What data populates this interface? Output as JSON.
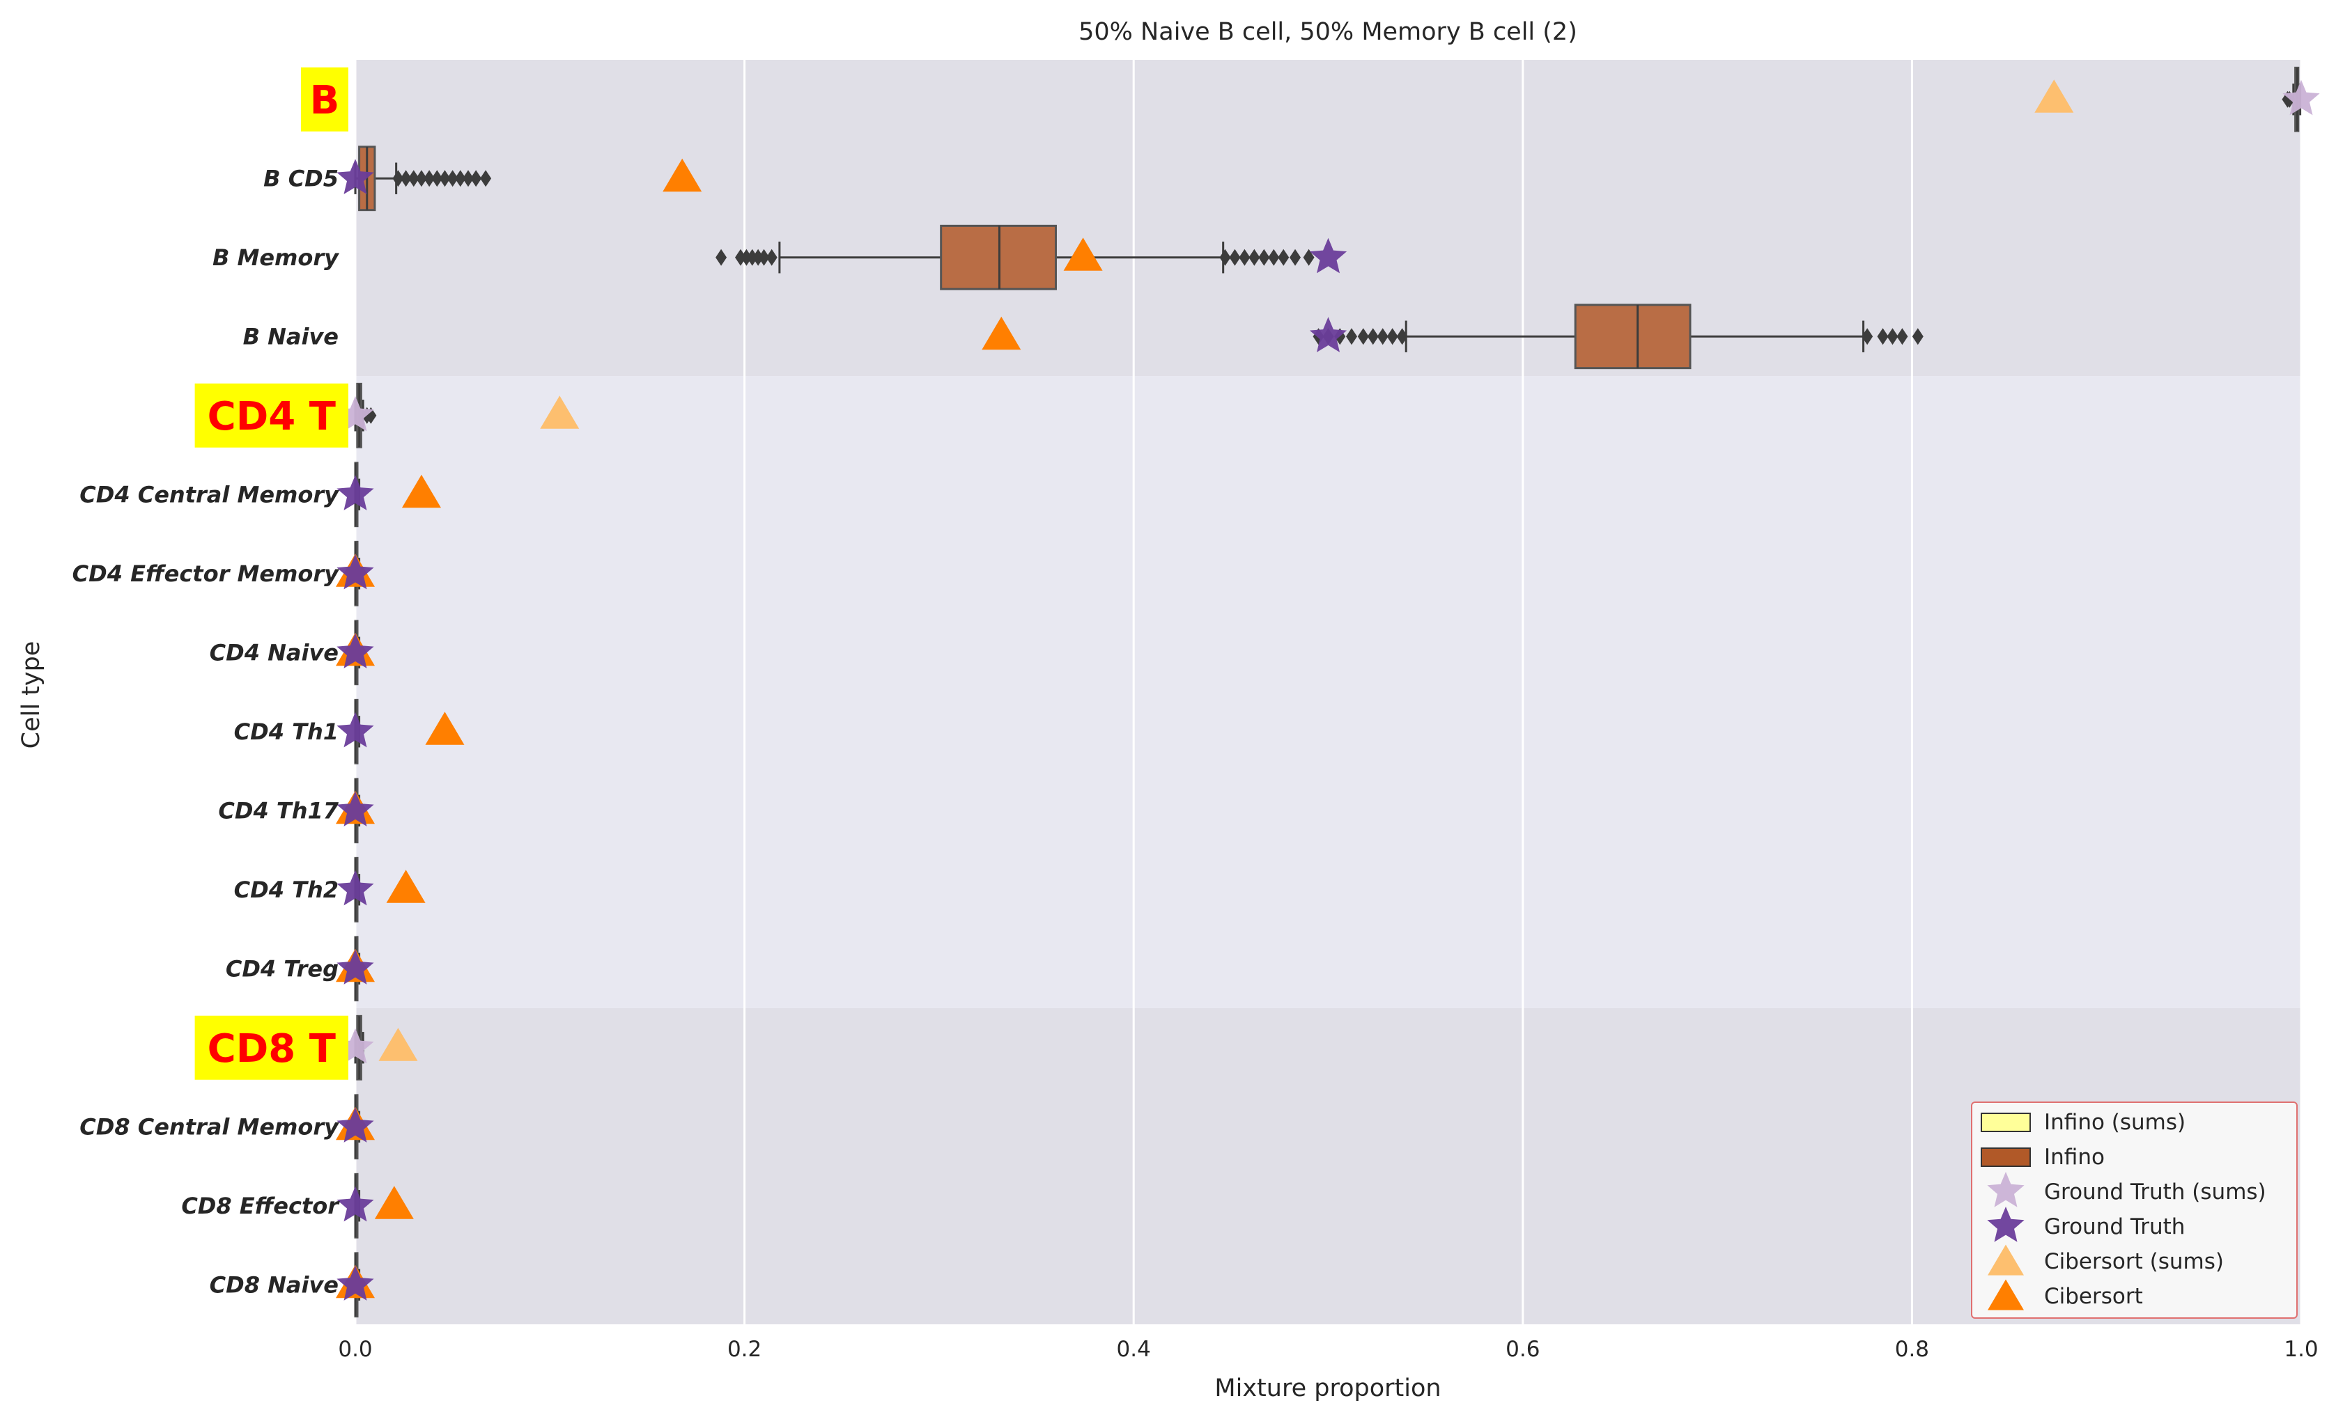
{
  "chart_data": {
    "type": "box",
    "title": "50% Naive B cell, 50% Memory B cell (2)",
    "xlabel": "Mixture proportion",
    "ylabel": "Cell type",
    "xlim": [
      0.0,
      1.0
    ],
    "xticks": [
      "0.0",
      "0.2",
      "0.4",
      "0.6",
      "0.8",
      "1.0"
    ],
    "grid": true,
    "legend_position": "bottom-right",
    "groups": [
      {
        "label": "B",
        "rows": [
          "B",
          "B CD5",
          "B Memory",
          "B Naive"
        ]
      },
      {
        "label": "CD4 T",
        "rows": [
          "CD4 T",
          "CD4 Central Memory",
          "CD4 Effector Memory",
          "CD4 Naive",
          "CD4 Th1",
          "CD4 Th17",
          "CD4 Th2",
          "CD4 Treg"
        ]
      },
      {
        "label": "CD8 T",
        "rows": [
          "CD8 T",
          "CD8 Central Memory",
          "CD8 Effector",
          "CD8 Naive"
        ]
      }
    ],
    "categories": [
      "B",
      "B CD5",
      "B Memory",
      "B Naive",
      "CD4 T",
      "CD4 Central Memory",
      "CD4 Effector Memory",
      "CD4 Naive",
      "CD4 Th1",
      "CD4 Th17",
      "CD4 Th2",
      "CD4 Treg",
      "CD8 T",
      "CD8 Central Memory",
      "CD8 Effector",
      "CD8 Naive"
    ],
    "group_header_rows": [
      "B",
      "CD4 T",
      "CD8 T"
    ],
    "colors": {
      "infino_sums": "#ffff99",
      "infino": "#b15928",
      "ground_truth_sums": "#cab2d6",
      "ground_truth": "#6a3d9a",
      "cibersort_sums": "#fdbf6f",
      "cibersort": "#ff7f00",
      "label_box": "#ffff00",
      "label_text": "#ff0000",
      "band_dark": "#e0dfe7",
      "band_light": "#e8e8f1"
    },
    "series": [
      {
        "name": "Infino",
        "kind": "box",
        "boxes": [
          {
            "row": "B",
            "whislo": 0.996,
            "q1": 0.997,
            "med": 0.998,
            "q3": 0.9985,
            "whishi": 0.9995,
            "fliers": [
              0.993,
              0.994
            ]
          },
          {
            "row": "B CD5",
            "whislo": 0.0,
            "q1": 0.002,
            "med": 0.006,
            "q3": 0.01,
            "whishi": 0.021,
            "fliers": [
              0.022,
              0.026,
              0.03,
              0.034,
              0.038,
              0.042,
              0.046,
              0.05,
              0.054,
              0.058,
              0.062,
              0.067
            ]
          },
          {
            "row": "B Memory",
            "whislo": 0.218,
            "q1": 0.301,
            "med": 0.331,
            "q3": 0.36,
            "whishi": 0.446,
            "fliers": [
              0.188,
              0.198,
              0.201,
              0.204,
              0.207,
              0.21,
              0.214,
              0.447,
              0.452,
              0.457,
              0.462,
              0.467,
              0.472,
              0.477,
              0.483,
              0.49
            ]
          },
          {
            "row": "B Naive",
            "whislo": 0.54,
            "q1": 0.627,
            "med": 0.659,
            "q3": 0.686,
            "whishi": 0.775,
            "fliers": [
              0.495,
              0.5,
              0.506,
              0.512,
              0.518,
              0.523,
              0.528,
              0.533,
              0.538,
              0.777,
              0.785,
              0.79,
              0.795,
              0.803
            ]
          },
          {
            "row": "CD4 T",
            "whislo": 0.0,
            "q1": 0.001,
            "med": 0.002,
            "q3": 0.003,
            "whishi": 0.004,
            "fliers": [
              0.006,
              0.008
            ]
          },
          {
            "row": "CD4 Central Memory",
            "whislo": 0.0,
            "q1": 0.0,
            "med": 0.0,
            "q3": 0.001,
            "whishi": 0.002,
            "fliers": []
          },
          {
            "row": "CD4 Effector Memory",
            "whislo": 0.0,
            "q1": 0.0,
            "med": 0.0,
            "q3": 0.001,
            "whishi": 0.002,
            "fliers": []
          },
          {
            "row": "CD4 Naive",
            "whislo": 0.0,
            "q1": 0.0,
            "med": 0.0,
            "q3": 0.001,
            "whishi": 0.002,
            "fliers": []
          },
          {
            "row": "CD4 Th1",
            "whislo": 0.0,
            "q1": 0.0,
            "med": 0.0,
            "q3": 0.001,
            "whishi": 0.002,
            "fliers": []
          },
          {
            "row": "CD4 Th17",
            "whislo": 0.0,
            "q1": 0.0,
            "med": 0.0,
            "q3": 0.001,
            "whishi": 0.002,
            "fliers": []
          },
          {
            "row": "CD4 Th2",
            "whislo": 0.0,
            "q1": 0.0,
            "med": 0.0,
            "q3": 0.001,
            "whishi": 0.002,
            "fliers": []
          },
          {
            "row": "CD4 Treg",
            "whislo": 0.0,
            "q1": 0.0,
            "med": 0.0,
            "q3": 0.001,
            "whishi": 0.002,
            "fliers": []
          },
          {
            "row": "CD8 T",
            "whislo": 0.0,
            "q1": 0.001,
            "med": 0.002,
            "q3": 0.003,
            "whishi": 0.004,
            "fliers": []
          },
          {
            "row": "CD8 Central Memory",
            "whislo": 0.0,
            "q1": 0.0,
            "med": 0.0,
            "q3": 0.001,
            "whishi": 0.002,
            "fliers": []
          },
          {
            "row": "CD8 Effector",
            "whislo": 0.0,
            "q1": 0.0,
            "med": 0.0,
            "q3": 0.001,
            "whishi": 0.002,
            "fliers": []
          },
          {
            "row": "CD8 Naive",
            "whislo": 0.0,
            "q1": 0.0,
            "med": 0.0,
            "q3": 0.001,
            "whishi": 0.002,
            "fliers": []
          }
        ]
      },
      {
        "name": "Ground Truth",
        "kind": "star",
        "points": [
          {
            "row": "B",
            "x": 1.0,
            "sums": true
          },
          {
            "row": "B CD5",
            "x": 0.0
          },
          {
            "row": "B Memory",
            "x": 0.5
          },
          {
            "row": "B Naive",
            "x": 0.5
          },
          {
            "row": "CD4 T",
            "x": 0.0,
            "sums": true
          },
          {
            "row": "CD4 Central Memory",
            "x": 0.0
          },
          {
            "row": "CD4 Effector Memory",
            "x": 0.0
          },
          {
            "row": "CD4 Naive",
            "x": 0.0
          },
          {
            "row": "CD4 Th1",
            "x": 0.0
          },
          {
            "row": "CD4 Th17",
            "x": 0.0
          },
          {
            "row": "CD4 Th2",
            "x": 0.0
          },
          {
            "row": "CD4 Treg",
            "x": 0.0
          },
          {
            "row": "CD8 T",
            "x": 0.0,
            "sums": true
          },
          {
            "row": "CD8 Central Memory",
            "x": 0.0
          },
          {
            "row": "CD8 Effector",
            "x": 0.0
          },
          {
            "row": "CD8 Naive",
            "x": 0.0
          }
        ]
      },
      {
        "name": "Cibersort",
        "kind": "triangle",
        "points": [
          {
            "row": "B",
            "x": 0.873,
            "sums": true
          },
          {
            "row": "B CD5",
            "x": 0.168
          },
          {
            "row": "B Memory",
            "x": 0.374
          },
          {
            "row": "B Naive",
            "x": 0.332
          },
          {
            "row": "CD4 T",
            "x": 0.105,
            "sums": true
          },
          {
            "row": "CD4 Central Memory",
            "x": 0.034
          },
          {
            "row": "CD4 Effector Memory",
            "x": 0.0
          },
          {
            "row": "CD4 Naive",
            "x": 0.0
          },
          {
            "row": "CD4 Th1",
            "x": 0.046
          },
          {
            "row": "CD4 Th17",
            "x": 0.0
          },
          {
            "row": "CD4 Th2",
            "x": 0.026
          },
          {
            "row": "CD4 Treg",
            "x": 0.0
          },
          {
            "row": "CD8 T",
            "x": 0.022,
            "sums": true
          },
          {
            "row": "CD8 Central Memory",
            "x": 0.0
          },
          {
            "row": "CD8 Effector",
            "x": 0.02
          },
          {
            "row": "CD8 Naive",
            "x": 0.0
          }
        ]
      }
    ],
    "legend": [
      {
        "label": "Infino (sums)",
        "marker": "box",
        "color": "#ffff99"
      },
      {
        "label": "Infino",
        "marker": "box",
        "color": "#b15928"
      },
      {
        "label": "Ground Truth (sums)",
        "marker": "star",
        "color": "#cab2d6"
      },
      {
        "label": "Ground Truth",
        "marker": "star",
        "color": "#6a3d9a"
      },
      {
        "label": "Cibersort (sums)",
        "marker": "triangle",
        "color": "#fdbf6f"
      },
      {
        "label": "Cibersort",
        "marker": "triangle",
        "color": "#ff7f00"
      }
    ]
  }
}
